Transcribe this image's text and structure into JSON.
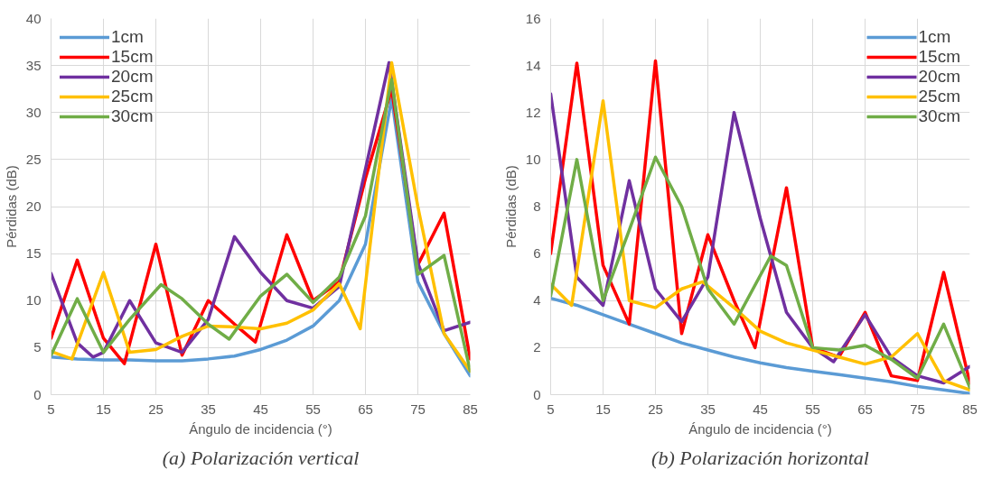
{
  "chart_data": [
    {
      "type": "line",
      "xlabel": "Ángulo de incidencia (°)",
      "ylabel": "Pérdidas (dB)",
      "xlim": [
        5,
        85
      ],
      "xticks": [
        5,
        15,
        25,
        35,
        45,
        55,
        65,
        75,
        85
      ],
      "ylim": [
        0,
        40
      ],
      "yticks": [
        0,
        5,
        10,
        15,
        20,
        25,
        30,
        35,
        40
      ],
      "grid": true,
      "legend": "top left",
      "line_style": "solid",
      "marker": "none",
      "annotations": [
        "(a) Polarización vertical"
      ],
      "series": [
        {
          "name": "1cm",
          "color": "#5b9bd5",
          "x": [
            5,
            10,
            15,
            20,
            25,
            30,
            35,
            40,
            45,
            50,
            55,
            60,
            65,
            70,
            75,
            80,
            85
          ],
          "values": [
            4.0,
            3.8,
            3.7,
            3.7,
            3.6,
            3.6,
            3.8,
            4.1,
            4.8,
            5.8,
            7.3,
            10,
            16,
            31.5,
            12,
            6.5,
            2
          ]
        },
        {
          "name": "15cm",
          "color": "#ff0000",
          "x": [
            5,
            10,
            15,
            19,
            25,
            30,
            35,
            40,
            44,
            50,
            55,
            60,
            65,
            70,
            75,
            80,
            85
          ],
          "values": [
            6,
            14.3,
            6,
            3.3,
            16,
            4.2,
            10,
            7.5,
            5.6,
            17,
            10,
            12,
            23,
            32.5,
            13.8,
            19.3,
            3.8
          ]
        },
        {
          "name": "20cm",
          "color": "#7030a0",
          "x": [
            5,
            10,
            13,
            15,
            20,
            25,
            30,
            35,
            40,
            45,
            50,
            55,
            60,
            65,
            69.5,
            75,
            80,
            85
          ],
          "values": [
            12.9,
            5.5,
            4,
            4.5,
            10,
            5.5,
            4.5,
            8,
            16.8,
            13,
            10,
            9.2,
            11.5,
            24,
            35.3,
            14,
            6.8,
            7.7
          ]
        },
        {
          "name": "25cm",
          "color": "#ffc000",
          "x": [
            5,
            9,
            15,
            20,
            25,
            30,
            35,
            40,
            45,
            50,
            55,
            60,
            64,
            70,
            75,
            80,
            85
          ],
          "values": [
            4.6,
            3.8,
            13,
            4.5,
            4.8,
            6.2,
            7.3,
            7.2,
            7,
            7.6,
            9,
            11.8,
            7,
            35.3,
            20,
            6.5,
            2.5
          ]
        },
        {
          "name": "30cm",
          "color": "#70ad47",
          "x": [
            5,
            10,
            15,
            20,
            26,
            30,
            35,
            39,
            45,
            50,
            55,
            60,
            65,
            70,
            75,
            80,
            85
          ],
          "values": [
            4.2,
            10.2,
            4.5,
            8,
            11.7,
            10.2,
            7.5,
            5.9,
            10.5,
            12.8,
            9.8,
            12.5,
            19,
            33.5,
            12.8,
            14.8,
            2.5
          ]
        }
      ]
    },
    {
      "type": "line",
      "xlabel": "Ángulo de incidencia (°)",
      "ylabel": "Pérdidas (dB)",
      "xlim": [
        5,
        85
      ],
      "xticks": [
        5,
        15,
        25,
        35,
        45,
        55,
        65,
        75,
        85
      ],
      "ylim": [
        0,
        16
      ],
      "yticks": [
        0,
        2,
        4,
        6,
        8,
        10,
        12,
        14,
        16
      ],
      "grid": true,
      "legend": "top right",
      "line_style": "solid",
      "marker": "none",
      "annotations": [
        "(b) Polarización horizontal"
      ],
      "series": [
        {
          "name": "1cm",
          "color": "#5b9bd5",
          "x": [
            5,
            10,
            15,
            20,
            25,
            30,
            35,
            40,
            45,
            50,
            55,
            60,
            65,
            70,
            75,
            80,
            85
          ],
          "values": [
            4.1,
            3.8,
            3.4,
            3.0,
            2.6,
            2.2,
            1.9,
            1.6,
            1.35,
            1.15,
            1.0,
            0.85,
            0.7,
            0.55,
            0.35,
            0.2,
            0.05
          ]
        },
        {
          "name": "15cm",
          "color": "#ff0000",
          "x": [
            5,
            10,
            15,
            20,
            25,
            30,
            35,
            40,
            44,
            50,
            55,
            60,
            65,
            70,
            75,
            80,
            85
          ],
          "values": [
            6,
            14.1,
            5.5,
            3,
            14.2,
            2.6,
            6.8,
            4,
            2,
            8.8,
            2,
            1.6,
            3.5,
            0.8,
            0.6,
            5.2,
            0.5
          ]
        },
        {
          "name": "20cm",
          "color": "#7030a0",
          "x": [
            5,
            10,
            15,
            20,
            25,
            30,
            35,
            40,
            45,
            50,
            55,
            59,
            65,
            70,
            75,
            80,
            85
          ],
          "values": [
            12.8,
            5,
            3.8,
            9.1,
            4.5,
            3.1,
            5,
            12,
            7.5,
            3.5,
            2,
            1.4,
            3.4,
            1.6,
            0.8,
            0.5,
            1.2
          ]
        },
        {
          "name": "25cm",
          "color": "#ffc000",
          "x": [
            5,
            9,
            15,
            20,
            25,
            30,
            34,
            40,
            45,
            50,
            55,
            60,
            65,
            70,
            75,
            80,
            85
          ],
          "values": [
            4.7,
            3.8,
            12.5,
            4,
            3.7,
            4.5,
            4.8,
            3.7,
            2.7,
            2.2,
            1.9,
            1.6,
            1.3,
            1.6,
            2.6,
            0.6,
            0.2
          ]
        },
        {
          "name": "30cm",
          "color": "#70ad47",
          "x": [
            5,
            10,
            15,
            20,
            25,
            30,
            35,
            40,
            47,
            50,
            55,
            60,
            65,
            70,
            75,
            80,
            85
          ],
          "values": [
            4.2,
            10,
            4,
            7,
            10.1,
            8,
            4.5,
            3,
            5.9,
            5.5,
            2,
            1.9,
            2.1,
            1.5,
            0.7,
            3,
            0.3
          ]
        }
      ]
    }
  ]
}
